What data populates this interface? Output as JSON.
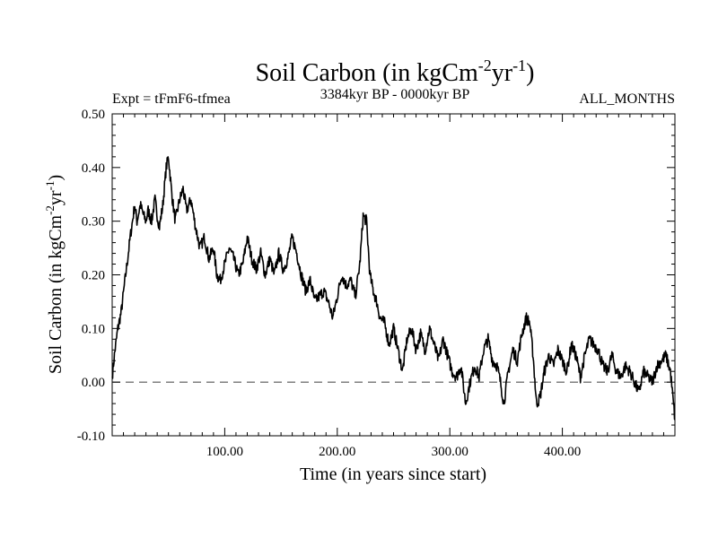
{
  "chart_data": {
    "type": "line",
    "title": "Soil Carbon (in kgCm",
    "title_exp1": "-2",
    "title_mid": "yr",
    "title_exp2": "-1",
    "title_end": ")",
    "subtitle_left": "Expt = tFmF6-tfmea",
    "subtitle_center": "3384kyr BP - 0000kyr BP",
    "subtitle_right": "ALL_MONTHS",
    "xlabel": "Time (in years since start)",
    "ylabel": "Soil Carbon (in kgCm",
    "ylabel_exp1": "-2",
    "ylabel_mid": "yr",
    "ylabel_exp2": "-1",
    "ylabel_end": ")",
    "xlim": [
      0,
      500
    ],
    "ylim": [
      -0.1,
      0.5
    ],
    "x_ticks": [
      100,
      200,
      300,
      400
    ],
    "x_tick_labels": [
      "100.00",
      "200.00",
      "300.00",
      "400.00"
    ],
    "y_ticks": [
      -0.1,
      0.0,
      0.1,
      0.2,
      0.3,
      0.4,
      0.5
    ],
    "y_tick_labels": [
      "-0.10",
      "0.00",
      "0.10",
      "0.20",
      "0.30",
      "0.40",
      "0.50"
    ],
    "reference_line": 0.0,
    "series": [
      {
        "name": "Soil Carbon",
        "color": "#000000",
        "x": [
          0,
          2,
          5,
          8,
          12,
          16,
          18,
          20,
          22,
          25,
          28,
          30,
          32,
          35,
          38,
          40,
          42,
          45,
          48,
          50,
          53,
          56,
          60,
          63,
          66,
          70,
          74,
          78,
          82,
          86,
          90,
          93,
          96,
          100,
          104,
          108,
          112,
          116,
          120,
          124,
          128,
          132,
          136,
          140,
          144,
          148,
          152,
          156,
          160,
          164,
          168,
          172,
          176,
          180,
          184,
          188,
          192,
          196,
          200,
          204,
          208,
          212,
          216,
          220,
          223,
          226,
          229,
          232,
          235,
          238,
          242,
          246,
          250,
          254,
          258,
          262,
          266,
          270,
          274,
          278,
          282,
          286,
          290,
          294,
          298,
          302,
          306,
          310,
          314,
          318,
          322,
          326,
          330,
          334,
          338,
          342,
          345,
          348,
          352,
          356,
          360,
          364,
          368,
          371,
          374,
          377,
          380,
          384,
          388,
          392,
          396,
          400,
          404,
          408,
          412,
          416,
          420,
          424,
          428,
          432,
          436,
          440,
          444,
          448,
          452,
          456,
          460,
          464,
          468,
          472,
          476,
          480,
          484,
          488,
          492,
          496,
          500
        ],
        "y": [
          0.01,
          0.05,
          0.1,
          0.13,
          0.2,
          0.27,
          0.3,
          0.33,
          0.3,
          0.33,
          0.31,
          0.3,
          0.32,
          0.3,
          0.34,
          0.31,
          0.29,
          0.33,
          0.4,
          0.42,
          0.35,
          0.3,
          0.34,
          0.36,
          0.32,
          0.34,
          0.29,
          0.25,
          0.27,
          0.23,
          0.25,
          0.2,
          0.19,
          0.22,
          0.25,
          0.23,
          0.2,
          0.22,
          0.27,
          0.23,
          0.21,
          0.24,
          0.2,
          0.23,
          0.2,
          0.24,
          0.21,
          0.23,
          0.27,
          0.24,
          0.2,
          0.17,
          0.19,
          0.15,
          0.16,
          0.17,
          0.15,
          0.12,
          0.16,
          0.2,
          0.18,
          0.19,
          0.16,
          0.22,
          0.31,
          0.3,
          0.2,
          0.17,
          0.15,
          0.12,
          0.11,
          0.07,
          0.1,
          0.06,
          0.02,
          0.08,
          0.1,
          0.06,
          0.09,
          0.06,
          0.1,
          0.07,
          0.04,
          0.08,
          0.05,
          0.02,
          0.01,
          0.03,
          -0.04,
          0.0,
          0.03,
          0.01,
          0.06,
          0.08,
          0.04,
          0.03,
          0.0,
          -0.04,
          0.02,
          0.06,
          0.04,
          0.09,
          0.12,
          0.11,
          0.05,
          -0.04,
          -0.03,
          0.02,
          0.05,
          0.03,
          0.06,
          0.04,
          0.02,
          0.07,
          0.05,
          0.01,
          0.05,
          0.08,
          0.07,
          0.06,
          0.03,
          0.02,
          0.05,
          0.02,
          0.01,
          0.03,
          0.02,
          0.0,
          -0.02,
          0.02,
          0.01,
          0.0,
          0.03,
          0.04,
          0.05,
          0.02,
          -0.07
        ]
      }
    ]
  }
}
